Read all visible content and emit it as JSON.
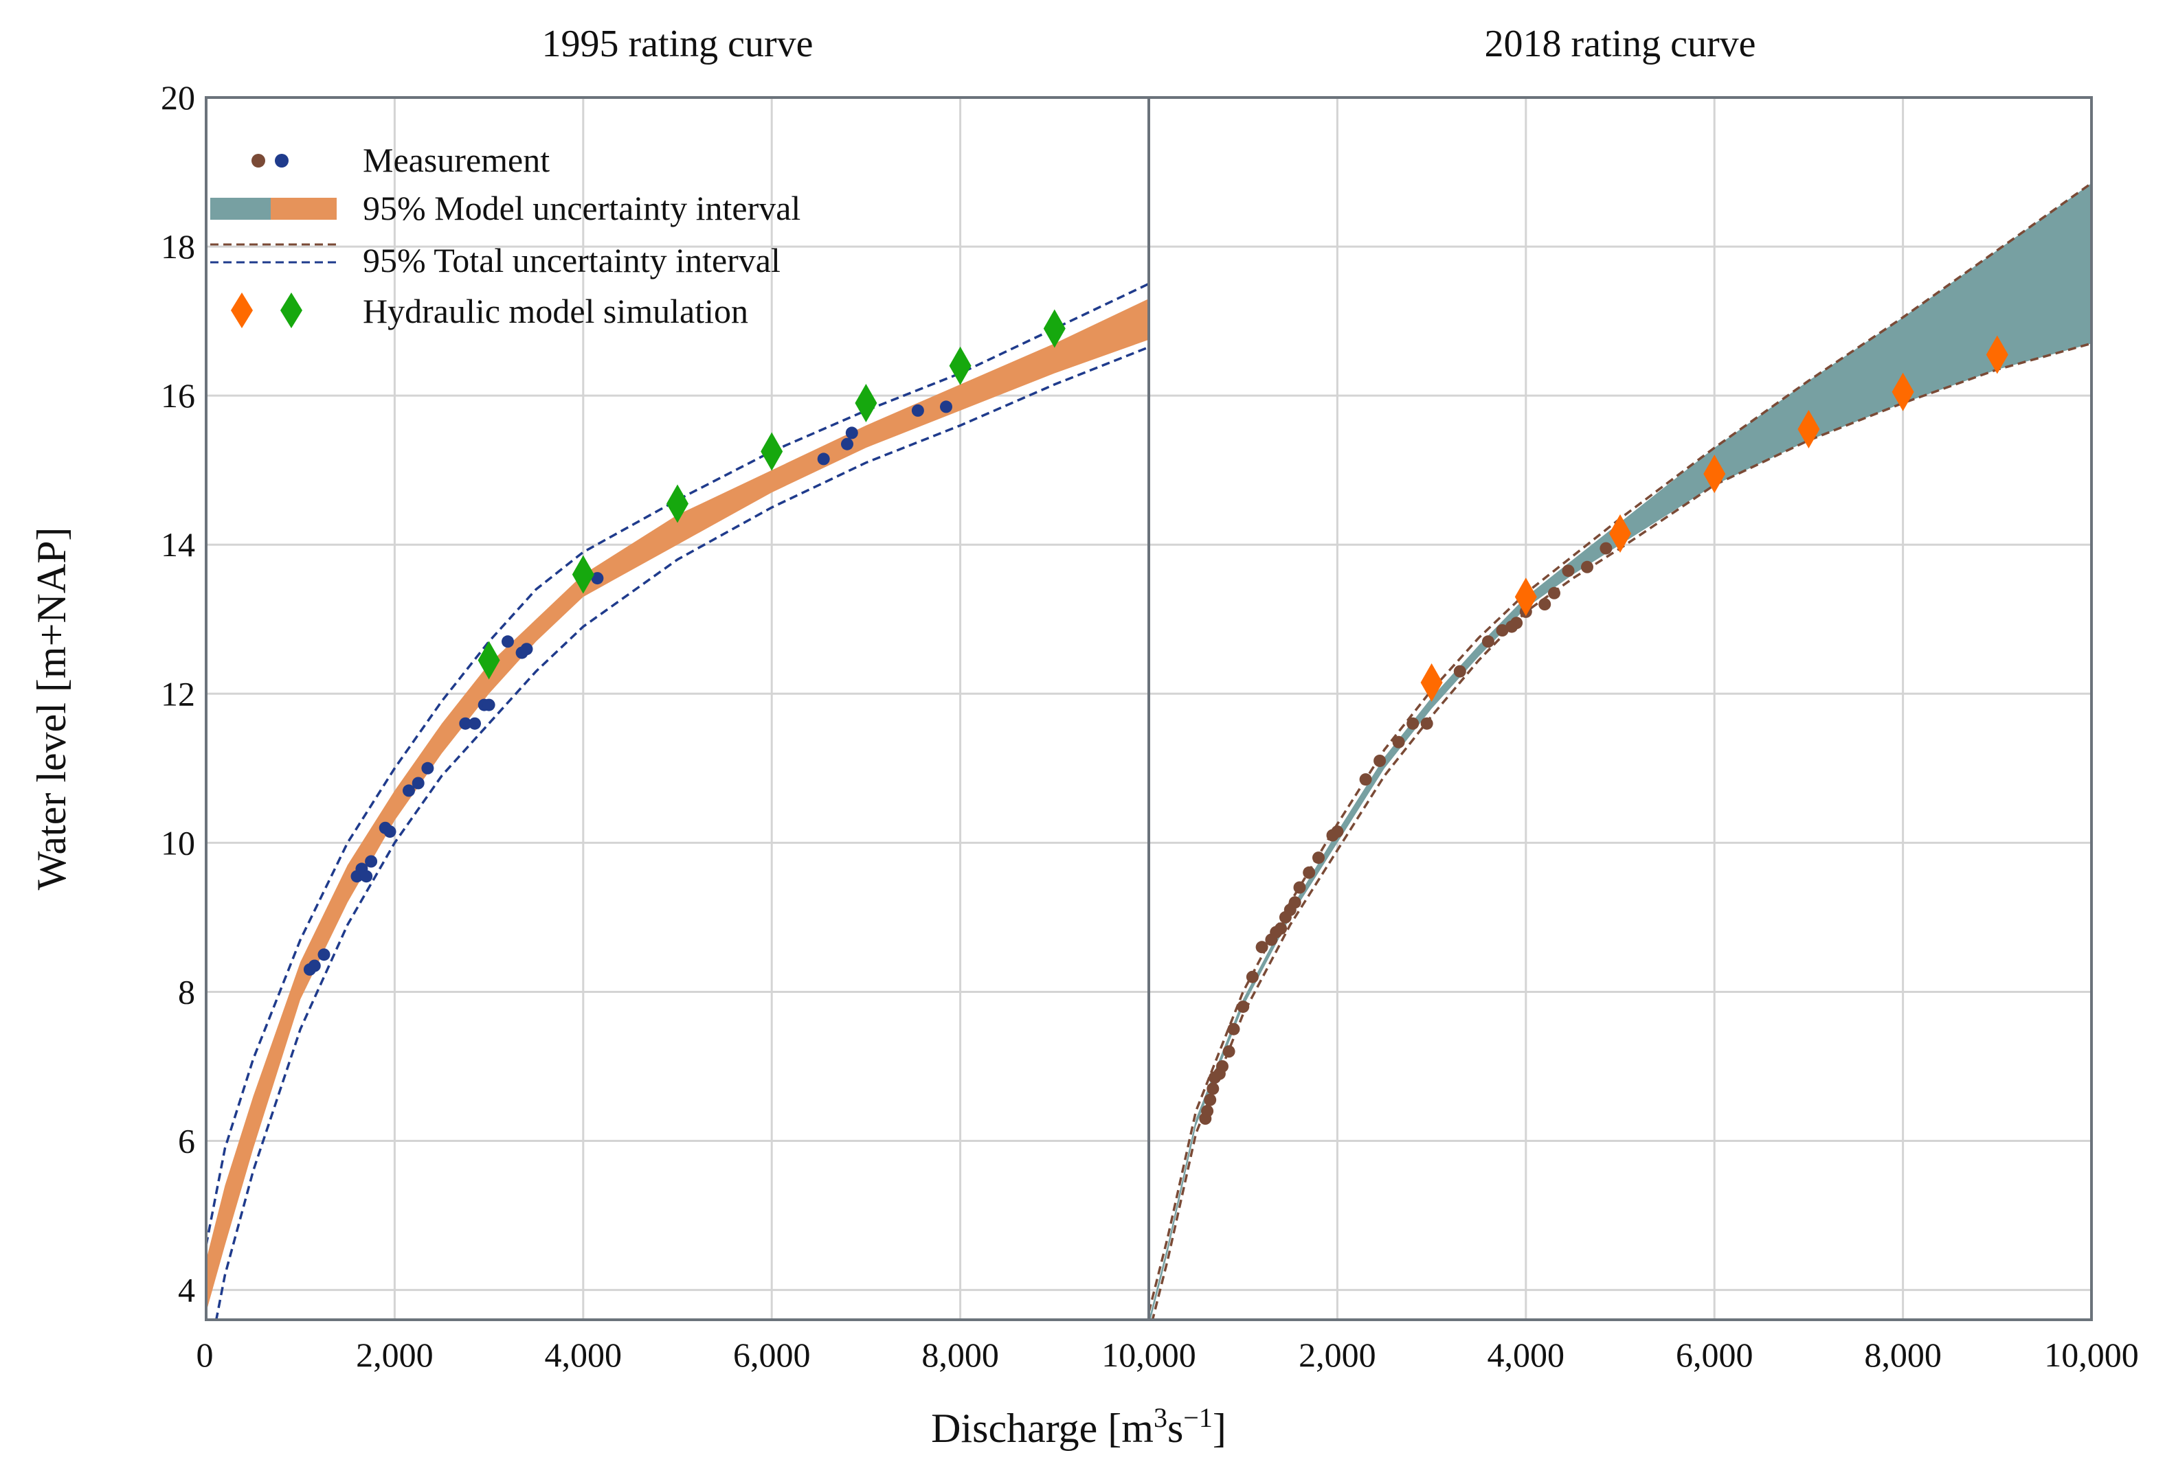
{
  "colors": {
    "blue_marker": "#1f3b8c",
    "brown_marker": "#7a4a36",
    "orange_band": "#e6935a",
    "teal_band": "#77a0a2",
    "green_diamond": "#16a80e",
    "orange_diamond": "#ff6a00",
    "blue_dash": "#1f3b8c",
    "brown_dash": "#7a4a36"
  },
  "chart_data": {
    "type": "scatter",
    "xlabel": "Discharge [m³s⁻¹]",
    "xlabel_main": "Discharge [m",
    "xlabel_sup1": "3",
    "xlabel_mid": "s",
    "xlabel_sup2": "−1",
    "xlabel_end": "]",
    "ylabel": "Water level [m+NAP]",
    "ylim": [
      3.6,
      20
    ],
    "yticks": [
      4,
      6,
      8,
      10,
      12,
      14,
      16,
      18,
      20
    ],
    "xticks": [
      0,
      2000,
      4000,
      6000,
      8000,
      10000
    ],
    "xtick_labels": [
      "0",
      "2,000",
      "4,000",
      "6,000",
      "8,000",
      "10,000"
    ],
    "legend": {
      "position": "upper-left",
      "entries": [
        "Measurement",
        "95% Model uncertainty interval",
        "95% Total uncertainty interval",
        "Hydraulic model simulation"
      ]
    },
    "panels": [
      {
        "title": "1995 rating curve",
        "xlim": [
          0,
          10000
        ],
        "model_band": {
          "x": [
            0,
            200,
            500,
            1000,
            1500,
            2000,
            2500,
            3000,
            3500,
            4000,
            5000,
            6000,
            7000,
            8000,
            9000,
            10000
          ],
          "lower": [
            3.7,
            4.6,
            5.9,
            7.9,
            9.2,
            10.3,
            11.2,
            12.0,
            12.7,
            13.3,
            14.0,
            14.7,
            15.3,
            15.8,
            16.3,
            16.75
          ],
          "upper": [
            4.4,
            5.4,
            6.6,
            8.4,
            9.7,
            10.7,
            11.6,
            12.4,
            13.0,
            13.6,
            14.4,
            15.0,
            15.6,
            16.15,
            16.7,
            17.3
          ]
        },
        "total_band": {
          "x": [
            0,
            200,
            500,
            1000,
            1500,
            2000,
            2500,
            3000,
            3500,
            4000,
            5000,
            6000,
            7000,
            8000,
            9000,
            10000
          ],
          "lower": [
            2.9,
            4.2,
            5.6,
            7.5,
            8.9,
            10.0,
            10.9,
            11.6,
            12.3,
            12.9,
            13.8,
            14.5,
            15.1,
            15.6,
            16.15,
            16.65
          ],
          "upper": [
            4.6,
            5.9,
            7.1,
            8.7,
            10.0,
            11.0,
            11.9,
            12.7,
            13.4,
            13.9,
            14.6,
            15.25,
            15.8,
            16.3,
            16.9,
            17.5
          ]
        },
        "measurements": {
          "x": [
            1100,
            1150,
            1250,
            1600,
            1650,
            1700,
            1750,
            1900,
            1950,
            2150,
            2250,
            2350,
            2750,
            2850,
            2950,
            3000,
            3200,
            3350,
            3400,
            4150,
            6550,
            6800,
            6850,
            7550,
            7850
          ],
          "y": [
            8.3,
            8.35,
            8.5,
            9.55,
            9.65,
            9.55,
            9.75,
            10.2,
            10.15,
            10.7,
            10.8,
            11.0,
            11.6,
            11.6,
            11.85,
            11.85,
            12.7,
            12.55,
            12.6,
            13.55,
            15.15,
            15.35,
            15.5,
            15.8,
            15.85
          ]
        },
        "simulations": {
          "x": [
            3000,
            4000,
            5000,
            6000,
            7000,
            8000,
            9000
          ],
          "y": [
            12.45,
            13.6,
            14.55,
            15.25,
            15.9,
            16.4,
            16.9
          ]
        }
      },
      {
        "title": "2018 rating curve",
        "xlim": [
          0,
          10000
        ],
        "model_band": {
          "x": [
            0,
            200,
            500,
            1000,
            1500,
            2000,
            2500,
            3000,
            3500,
            4000,
            4500,
            5000,
            6000,
            7000,
            8000,
            9000,
            10000
          ],
          "lower": [
            3.5,
            4.5,
            6.2,
            7.8,
            9.0,
            10.0,
            11.0,
            11.8,
            12.5,
            13.15,
            13.6,
            14.0,
            14.8,
            15.4,
            15.9,
            16.35,
            16.7
          ],
          "upper": [
            3.6,
            4.6,
            6.3,
            7.9,
            9.1,
            10.15,
            11.15,
            11.95,
            12.65,
            13.3,
            13.8,
            14.3,
            15.3,
            16.2,
            17.05,
            17.95,
            18.85
          ]
        },
        "total_band": {
          "x": [
            0,
            200,
            500,
            1000,
            1500,
            2000,
            2500,
            3000,
            3500,
            4000,
            4500,
            5000,
            6000,
            7000,
            8000,
            9000,
            10000
          ],
          "lower": [
            3.4,
            4.4,
            6.1,
            7.7,
            8.9,
            9.9,
            10.9,
            11.7,
            12.45,
            13.1,
            13.55,
            13.95,
            14.8,
            15.4,
            15.9,
            16.35,
            16.7
          ],
          "upper": [
            3.7,
            4.7,
            6.4,
            8.0,
            9.2,
            10.25,
            11.25,
            12.05,
            12.75,
            13.35,
            13.85,
            14.35,
            15.3,
            16.2,
            17.05,
            17.95,
            18.85
          ]
        },
        "measurements": {
          "x": [
            600,
            620,
            650,
            680,
            700,
            750,
            780,
            850,
            900,
            1000,
            1100,
            1200,
            1300,
            1350,
            1400,
            1450,
            1500,
            1550,
            1600,
            1700,
            1800,
            1950,
            2000,
            2300,
            2450,
            2650,
            2800,
            2950,
            3300,
            3600,
            3750,
            3850,
            3900,
            4000,
            4200,
            4300,
            4450,
            4650,
            4850
          ],
          "y": [
            6.3,
            6.4,
            6.55,
            6.7,
            6.85,
            6.9,
            7.0,
            7.2,
            7.5,
            7.8,
            8.2,
            8.6,
            8.7,
            8.8,
            8.85,
            9.0,
            9.1,
            9.2,
            9.4,
            9.6,
            9.8,
            10.1,
            10.15,
            10.85,
            11.1,
            11.35,
            11.6,
            11.6,
            12.3,
            12.7,
            12.85,
            12.9,
            12.95,
            13.1,
            13.2,
            13.35,
            13.65,
            13.7,
            13.95
          ]
        },
        "simulations": {
          "x": [
            3000,
            4000,
            5000,
            6000,
            7000,
            8000,
            9000
          ],
          "y": [
            12.15,
            13.3,
            14.15,
            14.95,
            15.55,
            16.05,
            16.55
          ]
        }
      }
    ]
  }
}
